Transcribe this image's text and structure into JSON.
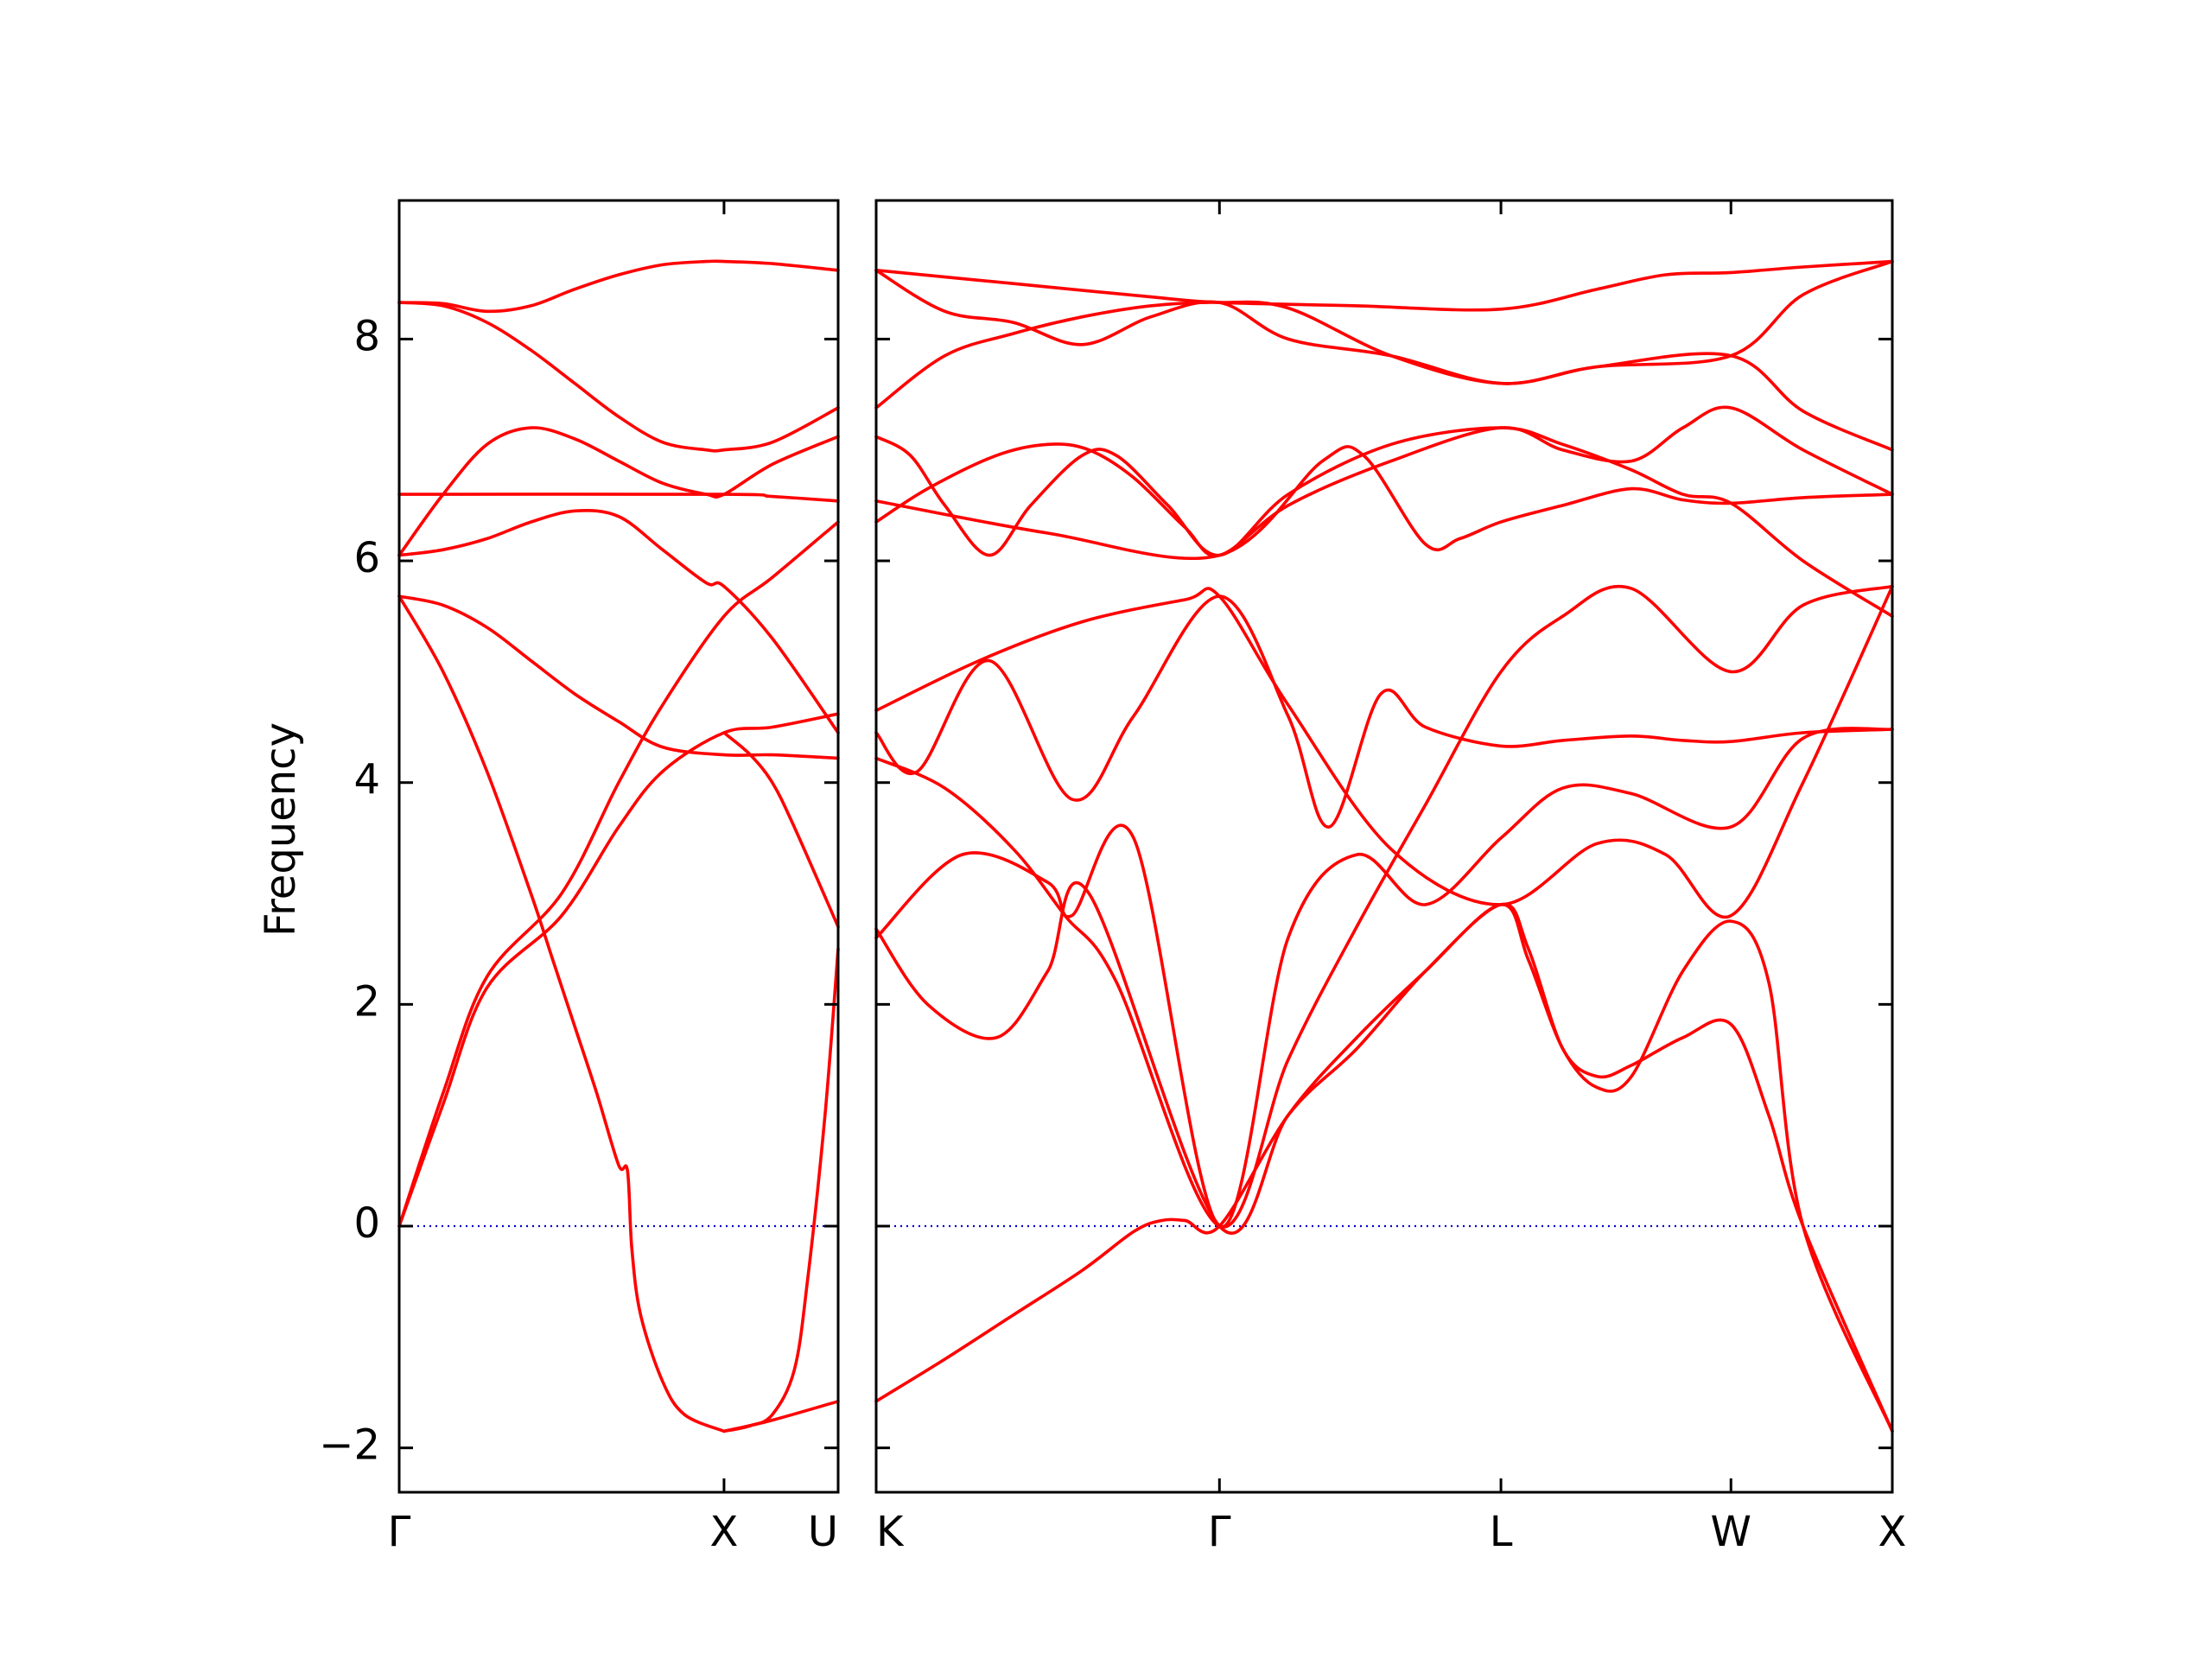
{
  "chart_data": {
    "type": "line",
    "title": "",
    "ylabel": "Frequency",
    "ylim": [
      -2.4,
      9.25
    ],
    "yticks": [
      -2,
      0,
      2,
      4,
      6,
      8
    ],
    "ytick_labels": [
      "−2",
      "0",
      "2",
      "4",
      "6",
      "8"
    ],
    "band_color": "#ff0000",
    "zero_line_color": "#0000cc",
    "panels": [
      {
        "id": "left",
        "xticks": [
          {
            "label": "Γ",
            "x": 0
          },
          {
            "label": "X",
            "x": 0.74
          },
          {
            "label": "U",
            "x": 1.0
          }
        ],
        "series": [
          {
            "x": [
              0,
              0.1,
              0.2,
              0.3,
              0.4,
              0.5,
              0.6,
              0.7,
              0.74,
              0.85,
              1.0
            ],
            "values": [
              8.33,
              8.32,
              8.25,
              8.3,
              8.45,
              8.58,
              8.67,
              8.7,
              8.7,
              8.68,
              8.62
            ]
          },
          {
            "x": [
              0,
              0.1,
              0.2,
              0.3,
              0.4,
              0.5,
              0.6,
              0.7,
              0.74,
              0.85,
              1.0
            ],
            "values": [
              8.33,
              8.3,
              8.15,
              7.9,
              7.6,
              7.3,
              7.07,
              7.0,
              7.0,
              7.07,
              7.38
            ]
          },
          {
            "x": [
              0,
              0.1,
              0.2,
              0.3,
              0.4,
              0.5,
              0.6,
              0.7,
              0.74,
              0.85,
              1.0
            ],
            "values": [
              6.05,
              6.6,
              7.05,
              7.2,
              7.1,
              6.9,
              6.7,
              6.6,
              6.6,
              6.87,
              7.12
            ]
          },
          {
            "x": [
              0,
              0.1,
              0.2,
              0.3,
              0.4,
              0.5,
              0.6,
              0.7,
              0.74,
              0.85,
              1.0
            ],
            "values": [
              6.05,
              6.1,
              6.2,
              6.35,
              6.45,
              6.4,
              6.1,
              5.8,
              5.77,
              5.3,
              4.45
            ]
          },
          {
            "x": [
              0,
              0.74,
              0.85,
              1.0
            ],
            "values": [
              6.6,
              6.6,
              6.58,
              6.54
            ]
          },
          {
            "x": [
              0,
              0.1,
              0.2,
              0.3,
              0.4,
              0.5,
              0.6,
              0.74,
              0.85,
              1.0
            ],
            "values": [
              5.68,
              5.6,
              5.4,
              5.1,
              4.8,
              4.55,
              4.32,
              4.25,
              4.25,
              4.22
            ]
          },
          {
            "x": [
              0,
              0.1,
              0.2,
              0.3,
              0.35,
              0.4,
              0.45,
              0.5,
              0.52,
              0.53,
              0.55,
              0.6,
              0.65,
              0.74
            ],
            "values": [
              5.68,
              5.0,
              4.1,
              3.0,
              2.4,
              1.8,
              1.2,
              0.55,
              0.5,
              -0.2,
              -0.8,
              -1.4,
              -1.7,
              -1.85
            ]
          },
          {
            "x": [
              0,
              0.1,
              0.2,
              0.37,
              0.5,
              0.6,
              0.74,
              0.85,
              1.0
            ],
            "values": [
              0,
              1.2,
              2.25,
              3.0,
              4.0,
              4.7,
              5.5,
              5.85,
              6.35
            ]
          },
          {
            "x": [
              0,
              0.1,
              0.2,
              0.37,
              0.5,
              0.6,
              0.74,
              0.85,
              1.0
            ],
            "values": [
              0,
              1.1,
              2.15,
              2.8,
              3.6,
              4.1,
              4.45,
              4.5,
              4.62
            ]
          },
          {
            "x": [
              0.74,
              0.8,
              0.85,
              0.9,
              1.0
            ],
            "values": [
              4.45,
              4.25,
              4.0,
              3.6,
              2.7
            ]
          },
          {
            "x": [
              0.74,
              0.8,
              0.85,
              0.9,
              0.93,
              0.97,
              1.0
            ],
            "values": [
              -1.85,
              -1.8,
              -1.7,
              -1.3,
              -0.5,
              1.0,
              2.5
            ]
          },
          {
            "x": [
              0.74,
              0.85,
              1.0
            ],
            "values": [
              -1.85,
              -1.75,
              -1.58
            ]
          }
        ]
      },
      {
        "id": "right",
        "xticks": [
          {
            "label": "K",
            "x": 0
          },
          {
            "label": "Γ",
            "x": 1.0
          },
          {
            "label": "L",
            "x": 1.82
          },
          {
            "label": "W",
            "x": 2.49
          },
          {
            "label": "X",
            "x": 2.96
          }
        ],
        "series": [
          {
            "x": [
              0,
              0.4,
              0.8,
              1.0,
              1.4,
              1.82,
              2.1,
              2.3,
              2.49,
              2.7,
              2.96
            ],
            "values": [
              8.62,
              8.5,
              8.38,
              8.33,
              8.3,
              8.27,
              8.45,
              8.58,
              8.6,
              8.65,
              8.7
            ]
          },
          {
            "x": [
              0,
              0.2,
              0.4,
              0.6,
              0.8,
              1.0,
              1.2,
              1.5,
              1.82,
              2.1,
              2.49,
              2.7,
              2.96
            ],
            "values": [
              7.38,
              7.85,
              8.05,
              8.2,
              8.3,
              8.33,
              8.28,
              7.85,
              7.6,
              7.75,
              7.85,
              8.4,
              8.7
            ]
          },
          {
            "x": [
              0,
              0.2,
              0.4,
              0.6,
              0.8,
              1.0,
              1.2,
              1.5,
              1.82,
              2.1,
              2.49,
              2.7,
              2.96
            ],
            "values": [
              8.62,
              8.25,
              8.15,
              7.95,
              8.2,
              8.33,
              8.0,
              7.85,
              7.6,
              7.75,
              7.85,
              7.35,
              7.0
            ]
          },
          {
            "x": [
              0,
              0.15,
              0.35,
              0.5,
              0.62,
              0.75,
              0.9,
              1.0,
              1.2,
              1.5,
              1.82,
              2.0,
              2.2,
              2.35,
              2.49,
              2.7,
              2.96
            ],
            "values": [
              6.35,
              6.65,
              6.95,
              7.05,
              7.0,
              6.75,
              6.3,
              6.05,
              6.5,
              6.9,
              7.2,
              7.0,
              6.9,
              7.2,
              7.38,
              7.0,
              6.6
            ]
          },
          {
            "x": [
              0,
              0.1,
              0.2,
              0.33,
              0.45,
              0.6,
              0.7,
              0.85,
              1.0,
              1.2,
              1.5,
              1.82,
              2.0,
              2.2,
              2.35,
              2.49,
              2.7,
              2.96
            ],
            "values": [
              7.12,
              6.95,
              6.5,
              6.05,
              6.5,
              6.95,
              6.95,
              6.5,
              6.05,
              6.6,
              7.05,
              7.2,
              7.05,
              6.82,
              6.6,
              6.52,
              6.0,
              5.5
            ]
          },
          {
            "x": [
              0,
              0.5,
              1.0,
              1.3,
              1.42,
              1.6,
              1.7,
              1.82,
              2.0,
              2.2,
              2.35,
              2.49,
              2.7,
              2.96
            ],
            "values": [
              6.54,
              6.25,
              6.05,
              6.9,
              6.95,
              6.15,
              6.2,
              6.35,
              6.5,
              6.65,
              6.55,
              6.52,
              6.57,
              6.6
            ]
          },
          {
            "x": [
              0,
              0.3,
              0.6,
              0.9,
              1.0,
              1.2,
              1.5,
              1.82,
              2.1,
              2.3,
              2.49,
              2.7,
              2.96
            ],
            "values": [
              4.65,
              5.1,
              5.45,
              5.65,
              5.68,
              4.7,
              3.4,
              2.9,
              3.45,
              3.35,
              2.8,
              4.0,
              5.77
            ]
          },
          {
            "x": [
              0,
              0.12,
              0.33,
              0.57,
              0.75,
              1.0,
              1.2,
              1.32,
              1.47,
              1.6,
              1.82,
              2.0,
              2.2,
              2.35,
              2.49,
              2.7,
              2.96
            ],
            "values": [
              4.45,
              4.1,
              5.1,
              3.85,
              4.6,
              5.68,
              4.6,
              3.6,
              4.8,
              4.5,
              4.33,
              4.38,
              4.42,
              4.38,
              4.37,
              4.45,
              4.48
            ]
          },
          {
            "x": [
              0,
              0.2,
              0.4,
              0.55,
              0.7,
              1.0,
              1.2,
              1.4,
              1.6,
              1.82,
              2.0,
              2.2,
              2.49,
              2.7,
              2.96
            ],
            "values": [
              4.22,
              3.95,
              3.4,
              2.8,
              2.2,
              0.0,
              1.5,
              2.7,
              3.8,
              5.0,
              5.5,
              5.75,
              5.0,
              5.6,
              5.77
            ]
          },
          {
            "x": [
              0,
              0.25,
              0.5,
              0.57,
              0.75,
              1.0,
              1.2,
              1.4,
              1.6,
              1.82,
              2.0,
              2.2,
              2.49,
              2.7,
              2.96
            ],
            "values": [
              2.6,
              3.35,
              3.1,
              2.8,
              3.5,
              0.0,
              2.6,
              3.35,
              2.9,
              3.5,
              3.95,
              3.9,
              3.6,
              4.4,
              4.48
            ]
          },
          {
            "x": [
              0,
              0.15,
              0.35,
              0.5,
              0.62,
              1.0,
              1.2,
              1.4,
              1.6,
              1.82,
              1.9,
              2.0,
              2.1,
              2.2,
              2.35,
              2.49,
              2.6,
              2.7,
              2.96
            ],
            "values": [
              2.68,
              2.0,
              1.7,
              2.3,
              3.0,
              0.0,
              1.0,
              1.6,
              2.3,
              2.9,
              2.5,
              1.6,
              1.35,
              1.45,
              1.7,
              1.82,
              1.0,
              0.0,
              -1.85
            ]
          },
          {
            "x": [
              0,
              0.2,
              0.4,
              0.6,
              0.75,
              0.83,
              0.9,
              1.0,
              1.2,
              1.4,
              1.6,
              1.82,
              1.9,
              2.0,
              2.1,
              2.2,
              2.35,
              2.49,
              2.6,
              2.7,
              2.96
            ],
            "values": [
              -1.58,
              -1.2,
              -0.8,
              -0.4,
              -0.05,
              0.05,
              0.05,
              0.0,
              1.0,
              1.7,
              2.3,
              2.9,
              2.4,
              1.6,
              1.25,
              1.35,
              2.3,
              2.75,
              2.2,
              0.0,
              -1.85
            ]
          }
        ]
      }
    ]
  }
}
